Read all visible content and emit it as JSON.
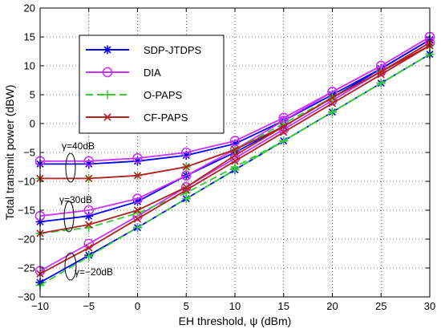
{
  "chart_data": {
    "type": "line",
    "xlabel": "EH threshold, ψ (dBm)",
    "ylabel": "Total transmit power (dBW)",
    "xlim": [
      -10,
      30
    ],
    "ylim": [
      -30,
      20
    ],
    "xticks": [
      -10,
      -5,
      0,
      5,
      10,
      15,
      20,
      25,
      30
    ],
    "yticks": [
      -30,
      -25,
      -20,
      -15,
      -10,
      -5,
      0,
      5,
      10,
      15,
      20
    ],
    "grid": true,
    "legend_position": "top-left",
    "x": [
      -10,
      -5,
      0,
      5,
      10,
      15,
      20,
      25,
      30
    ],
    "series": [
      {
        "name": "SDP-JTDPS",
        "color": "#0000ff",
        "dash": "solid",
        "marker": "asterisk",
        "curves": [
          {
            "gamma": "γ=40dB",
            "y": [
              -7,
              -7,
              -6.5,
              -5.5,
              -3.5,
              0.5,
              5,
              9.5,
              14.5
            ]
          },
          {
            "gamma": "γ=30dB",
            "y": [
              -17,
              -16,
              -13.5,
              -9,
              -5,
              -0.5,
              4.5,
              9.5,
              14.5
            ]
          },
          {
            "gamma": "γ=−20dB",
            "y": [
              -27.5,
              -22.8,
              -18,
              -13,
              -8,
              -3,
              2,
              7,
              12
            ]
          }
        ]
      },
      {
        "name": "DIA",
        "color": "#cc33ff",
        "dash": "solid",
        "marker": "circle",
        "curves": [
          {
            "gamma": "γ=40dB",
            "y": [
              -6.5,
              -6.5,
              -6,
              -5,
              -3,
              1,
              5.5,
              10,
              15
            ]
          },
          {
            "gamma": "γ=30dB",
            "y": [
              -16,
              -15,
              -13,
              -9,
              -4.5,
              0.5,
              5.5,
              10,
              15
            ]
          },
          {
            "gamma": "γ=−20dB",
            "y": [
              -25.5,
              -20.8,
              -16,
              -11,
              -6,
              -1,
              4,
              9,
              14
            ]
          }
        ]
      },
      {
        "name": "O-PAPS",
        "color": "#33cc33",
        "dash": "dashed",
        "marker": "plus",
        "curves": [
          {
            "gamma": "γ=40dB",
            "y": [
              -9.5,
              -9.5,
              -9,
              -7.5,
              -4.5,
              0,
              4.5,
              9,
              13.5
            ]
          },
          {
            "gamma": "γ=30dB",
            "y": [
              -19,
              -18,
              -15.5,
              -12,
              -7.5,
              -3,
              2,
              7,
              12
            ]
          },
          {
            "gamma": "γ=−20dB",
            "y": [
              -28,
              -23,
              -18,
              -13,
              -8,
              -3,
              2,
              7,
              12
            ]
          }
        ]
      },
      {
        "name": "CF-PAPS",
        "color": "#b22222",
        "dash": "solid",
        "marker": "cross",
        "curves": [
          {
            "gamma": "γ=40dB",
            "y": [
              -9.5,
              -9.5,
              -9,
              -7.5,
              -4.5,
              -0.5,
              4.5,
              9,
              13.5
            ]
          },
          {
            "gamma": "γ=30dB",
            "y": [
              -19,
              -17.5,
              -15,
              -11,
              -5.5,
              -0.5,
              4.5,
              9,
              14
            ]
          },
          {
            "gamma": "γ=−20dB",
            "y": [
              -26,
              -21.5,
              -16.5,
              -11.5,
              -6.5,
              -1.5,
              3.5,
              8.5,
              13.5
            ]
          }
        ]
      }
    ],
    "annotations": [
      {
        "text": "γ=40dB",
        "x": -10,
        "y": -8.5
      },
      {
        "text": "γ=30dB",
        "x": -10,
        "y": -17.8
      },
      {
        "text": "γ=−20dB",
        "x": -10,
        "y": -26.5
      }
    ]
  }
}
